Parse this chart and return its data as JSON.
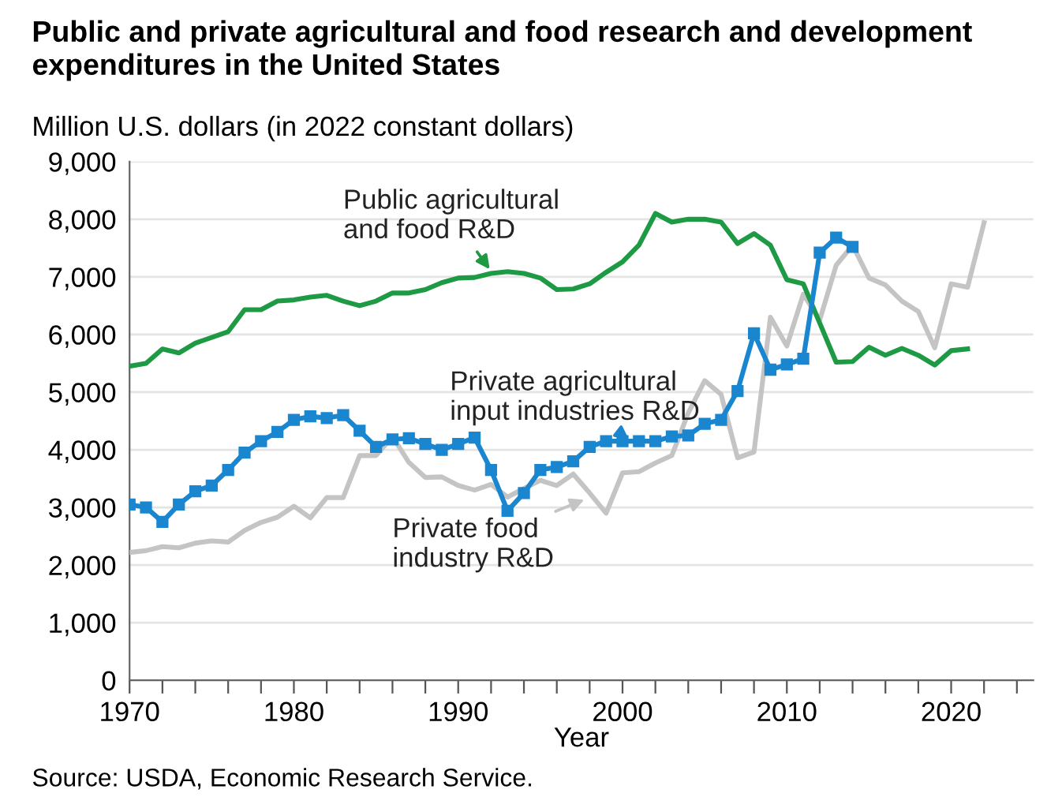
{
  "chart_data": {
    "type": "line",
    "title": "Public and private agricultural and food research and development\nexpenditures in the United States",
    "ylabel": "Million U.S. dollars (in 2022 constant dollars)",
    "xlabel": "Year",
    "xlim": [
      1970,
      2025
    ],
    "xticks": [
      {
        "value": 1970,
        "label": "1970"
      },
      {
        "value": 1972,
        "label": null
      },
      {
        "value": 1974,
        "label": null
      },
      {
        "value": 1976,
        "label": null
      },
      {
        "value": 1978,
        "label": null
      },
      {
        "value": 1980,
        "label": "1980"
      },
      {
        "value": 1982,
        "label": null
      },
      {
        "value": 1984,
        "label": null
      },
      {
        "value": 1986,
        "label": null
      },
      {
        "value": 1988,
        "label": null
      },
      {
        "value": 1990,
        "label": "1990"
      },
      {
        "value": 1992,
        "label": null
      },
      {
        "value": 1994,
        "label": null
      },
      {
        "value": 1996,
        "label": null
      },
      {
        "value": 1998,
        "label": null
      },
      {
        "value": 2000,
        "label": "2000"
      },
      {
        "value": 2002,
        "label": null
      },
      {
        "value": 2004,
        "label": null
      },
      {
        "value": 2006,
        "label": null
      },
      {
        "value": 2008,
        "label": null
      },
      {
        "value": 2010,
        "label": "2010"
      },
      {
        "value": 2012,
        "label": null
      },
      {
        "value": 2014,
        "label": null
      },
      {
        "value": 2016,
        "label": null
      },
      {
        "value": 2018,
        "label": null
      },
      {
        "value": 2020,
        "label": "2020"
      },
      {
        "value": 2022,
        "label": null
      },
      {
        "value": 2024,
        "label": null
      }
    ],
    "ylim": [
      0,
      9000
    ],
    "yticks": [
      {
        "value": 0,
        "label": "0"
      },
      {
        "value": 1000,
        "label": "1,000"
      },
      {
        "value": 2000,
        "label": "2,000"
      },
      {
        "value": 3000,
        "label": "3,000"
      },
      {
        "value": 4000,
        "label": "4,000"
      },
      {
        "value": 5000,
        "label": "5,000"
      },
      {
        "value": 6000,
        "label": "6,000"
      },
      {
        "value": 7000,
        "label": "7,000"
      },
      {
        "value": 8000,
        "label": "8,000"
      },
      {
        "value": 9000,
        "label": "9,000"
      }
    ],
    "grid": "y",
    "legend": false,
    "line_style": "solid",
    "series": [
      {
        "color": "#c4c4c4",
        "marker": "none",
        "x": [
          1970,
          1971,
          1972,
          1973,
          1974,
          1975,
          1976,
          1977,
          1978,
          1979,
          1980,
          1981,
          1982,
          1983,
          1984,
          1985,
          1986,
          1987,
          1988,
          1989,
          1990,
          1991,
          1992,
          1993,
          1994,
          1995,
          1996,
          1997,
          1998,
          1999,
          2000,
          2001,
          2002,
          2003,
          2004,
          2005,
          2006,
          2007,
          2008,
          2009,
          2010,
          2011,
          2012,
          2013,
          2014,
          2015,
          2016,
          2017,
          2018,
          2019,
          2020,
          2021,
          2022
        ],
        "values": [
          2220,
          2250,
          2320,
          2300,
          2380,
          2420,
          2400,
          2600,
          2740,
          2830,
          3020,
          2820,
          3170,
          3170,
          3900,
          3900,
          4230,
          3780,
          3520,
          3530,
          3380,
          3300,
          3400,
          3180,
          3330,
          3470,
          3380,
          3580,
          3250,
          2900,
          3600,
          3620,
          3770,
          3900,
          4640,
          5200,
          4960,
          3860,
          3960,
          6300,
          5800,
          6700,
          6250,
          7200,
          7550,
          6980,
          6860,
          6580,
          6400,
          5770,
          6880,
          6820,
          7940
        ]
      },
      {
        "color": "#1f9a44",
        "marker": "none",
        "x": [
          1970,
          1971,
          1972,
          1973,
          1974,
          1975,
          1976,
          1977,
          1978,
          1979,
          1980,
          1981,
          1982,
          1983,
          1984,
          1985,
          1986,
          1987,
          1988,
          1989,
          1990,
          1991,
          1992,
          1993,
          1994,
          1995,
          1996,
          1997,
          1998,
          1999,
          2000,
          2001,
          2002,
          2003,
          2004,
          2005,
          2006,
          2007,
          2008,
          2009,
          2010,
          2011,
          2012,
          2013,
          2014,
          2015,
          2016,
          2017,
          2018,
          2019,
          2020,
          2021
        ],
        "values": [
          5450,
          5500,
          5750,
          5680,
          5850,
          5950,
          6050,
          6430,
          6430,
          6580,
          6600,
          6650,
          6680,
          6580,
          6500,
          6580,
          6720,
          6720,
          6780,
          6900,
          6980,
          6990,
          7060,
          7090,
          7060,
          6980,
          6780,
          6790,
          6880,
          7080,
          7260,
          7550,
          8100,
          7950,
          8000,
          8000,
          7950,
          7580,
          7750,
          7550,
          6950,
          6880,
          6200,
          5520,
          5530,
          5780,
          5640,
          5760,
          5640,
          5470,
          5720,
          5750
        ]
      },
      {
        "color": "#1a86cf",
        "marker": "square",
        "x": [
          1970,
          1971,
          1972,
          1973,
          1974,
          1975,
          1976,
          1977,
          1978,
          1979,
          1980,
          1981,
          1982,
          1983,
          1984,
          1985,
          1986,
          1987,
          1988,
          1989,
          1990,
          1991,
          1992,
          1993,
          1994,
          1995,
          1996,
          1997,
          1998,
          1999,
          2000,
          2001,
          2002,
          2003,
          2004,
          2005,
          2006,
          2007,
          2008,
          2009,
          2010,
          2011,
          2012,
          2013,
          2014
        ],
        "values": [
          3050,
          3000,
          2750,
          3050,
          3280,
          3380,
          3650,
          3950,
          4150,
          4310,
          4520,
          4580,
          4550,
          4600,
          4330,
          4050,
          4180,
          4200,
          4100,
          4000,
          4100,
          4210,
          3650,
          2940,
          3250,
          3650,
          3700,
          3800,
          4050,
          4150,
          4150,
          4150,
          4150,
          4230,
          4250,
          4450,
          4520,
          5020,
          6020,
          5390,
          5480,
          5580,
          7420,
          7680,
          7520
        ]
      }
    ],
    "annotations": [
      {
        "text": "Public agricultural\nand food R&D",
        "x": 1992,
        "y": 7100
      },
      {
        "text": "Private agricultural\ninput industries R&D",
        "x": 2000.5,
        "y": 4150
      },
      {
        "text": "Private food\nindustry R&D",
        "x": 1997.8,
        "y": 3150
      },
      "Source: USDA, Economic Research Service."
    ]
  }
}
